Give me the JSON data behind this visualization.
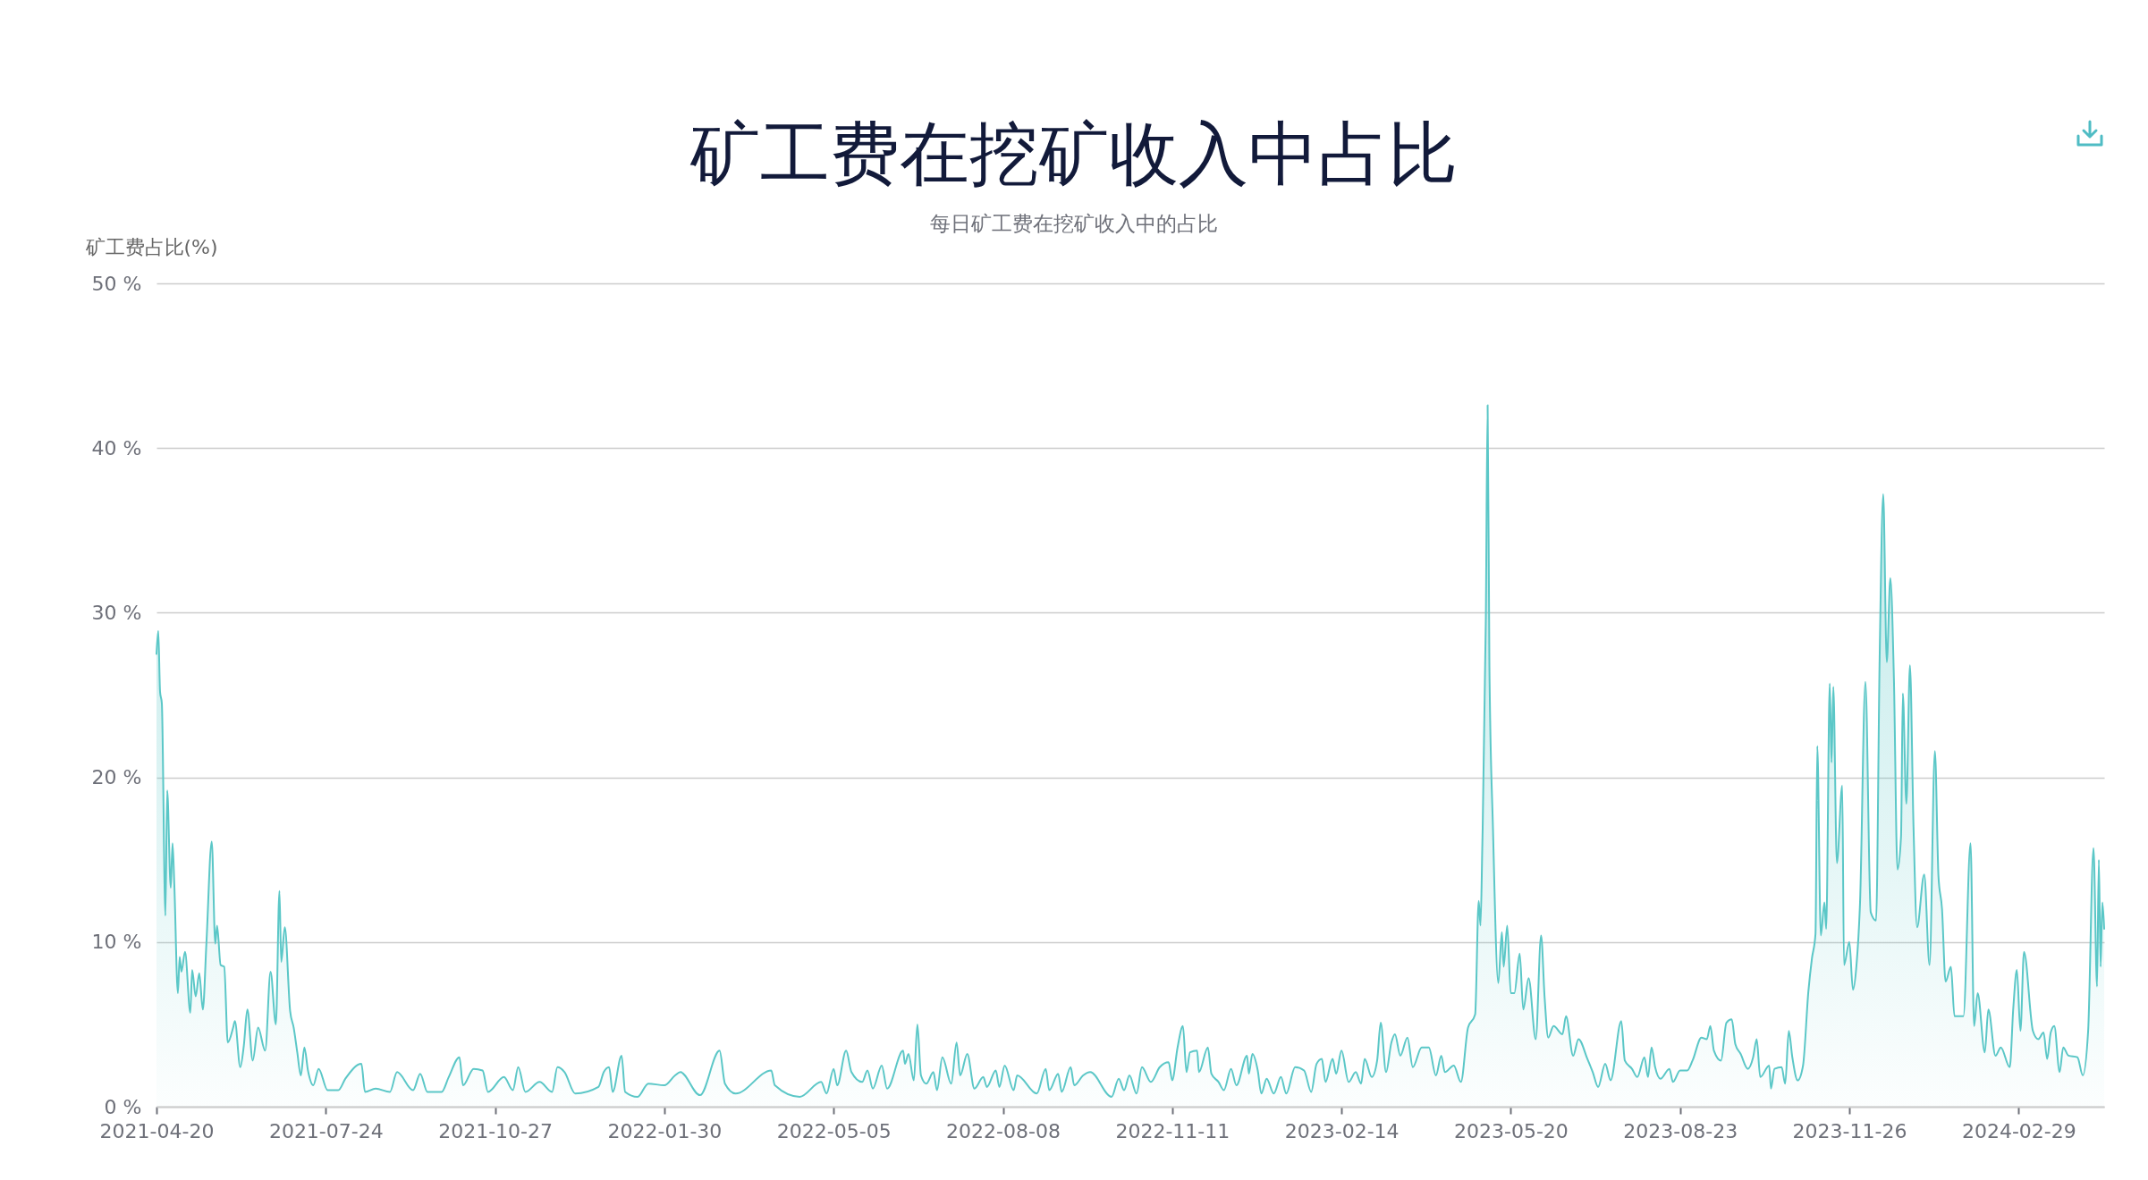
{
  "chart_data": {
    "type": "area",
    "title": "矿工费在挖矿收入中占比",
    "subtitle": "每日矿工费在挖矿收入中的占比",
    "ylabel": "矿工费占比(%)",
    "x": [
      "2021-04-20",
      "2021-04-21",
      "2021-04-22",
      "2021-04-23",
      "2021-04-25",
      "2021-04-26",
      "2021-04-28",
      "2021-04-29",
      "2021-04-30",
      "2021-05-02",
      "2021-05-03",
      "2021-05-04",
      "2021-05-06",
      "2021-05-09",
      "2021-05-10",
      "2021-05-12",
      "2021-05-14",
      "2021-05-16",
      "2021-05-18",
      "2021-05-21",
      "2021-05-23",
      "2021-05-24",
      "2021-05-26",
      "2021-05-28",
      "2021-05-30",
      "2021-06-02",
      "2021-06-03",
      "2021-06-06",
      "2021-06-08",
      "2021-06-10",
      "2021-06-13",
      "2021-06-16",
      "2021-06-20",
      "2021-06-23",
      "2021-06-26",
      "2021-06-28",
      "2021-06-29",
      "2021-07-01",
      "2021-07-04",
      "2021-07-06",
      "2021-07-08",
      "2021-07-10",
      "2021-07-12",
      "2021-07-14",
      "2021-07-17",
      "2021-07-20",
      "2021-07-25",
      "2021-07-31",
      "2021-08-04",
      "2021-08-13",
      "2021-08-15",
      "2021-08-21",
      "2021-08-29",
      "2021-09-02",
      "2021-09-11",
      "2021-09-15",
      "2021-09-19",
      "2021-09-27",
      "2021-10-01",
      "2021-10-07",
      "2021-10-09",
      "2021-10-15",
      "2021-10-20",
      "2021-10-23",
      "2021-11-01",
      "2021-11-06",
      "2021-11-09",
      "2021-11-13",
      "2021-11-21",
      "2021-11-28",
      "2021-12-01",
      "2021-12-05",
      "2021-12-11",
      "2021-12-24",
      "2021-12-27",
      "2021-12-30",
      "2022-01-01",
      "2022-01-06",
      "2022-01-08",
      "2022-01-15",
      "2022-01-21",
      "2022-01-30",
      "2022-02-05",
      "2022-02-08",
      "2022-02-19",
      "2022-03-02",
      "2022-03-05",
      "2022-03-11",
      "2022-03-31",
      "2022-04-02",
      "2022-04-16",
      "2022-04-28",
      "2022-05-01",
      "2022-05-05",
      "2022-05-07",
      "2022-05-12",
      "2022-05-15",
      "2022-05-21",
      "2022-05-24",
      "2022-05-27",
      "2022-06-01",
      "2022-06-04",
      "2022-06-13",
      "2022-06-14",
      "2022-06-16",
      "2022-06-19",
      "2022-06-21",
      "2022-06-23",
      "2022-06-26",
      "2022-06-30",
      "2022-07-02",
      "2022-07-05",
      "2022-07-10",
      "2022-07-13",
      "2022-07-15",
      "2022-07-19",
      "2022-07-23",
      "2022-07-28",
      "2022-07-30",
      "2022-08-04",
      "2022-08-06",
      "2022-08-09",
      "2022-08-14",
      "2022-08-16",
      "2022-08-27",
      "2022-09-01",
      "2022-09-03",
      "2022-09-08",
      "2022-09-10",
      "2022-09-15",
      "2022-09-17",
      "2022-09-22",
      "2022-09-26",
      "2022-10-08",
      "2022-10-12",
      "2022-10-15",
      "2022-10-18",
      "2022-10-22",
      "2022-10-25",
      "2022-10-30",
      "2022-11-04",
      "2022-11-09",
      "2022-11-11",
      "2022-11-14",
      "2022-11-17",
      "2022-11-19",
      "2022-11-21",
      "2022-11-25",
      "2022-11-26",
      "2022-12-01",
      "2022-12-03",
      "2022-12-07",
      "2022-12-10",
      "2022-12-14",
      "2022-12-17",
      "2022-12-23",
      "2022-12-24",
      "2022-12-26",
      "2022-12-29",
      "2022-12-31",
      "2023-01-03",
      "2023-01-07",
      "2023-01-11",
      "2023-01-14",
      "2023-01-19",
      "2023-01-24",
      "2023-01-28",
      "2023-01-31",
      "2023-02-03",
      "2023-02-05",
      "2023-02-09",
      "2023-02-11",
      "2023-02-14",
      "2023-02-18",
      "2023-02-22",
      "2023-02-25",
      "2023-02-27",
      "2023-03-03",
      "2023-03-06",
      "2023-03-08",
      "2023-03-11",
      "2023-03-14",
      "2023-03-16",
      "2023-03-19",
      "2023-03-23",
      "2023-03-26",
      "2023-03-31",
      "2023-04-04",
      "2023-04-08",
      "2023-04-11",
      "2023-04-13",
      "2023-04-18",
      "2023-04-22",
      "2023-04-26",
      "2023-04-30",
      "2023-05-02",
      "2023-05-03",
      "2023-05-04",
      "2023-05-06",
      "2023-05-07",
      "2023-05-08",
      "2023-05-10",
      "2023-05-13",
      "2023-05-15",
      "2023-05-16",
      "2023-05-18",
      "2023-05-20",
      "2023-05-22",
      "2023-05-25",
      "2023-05-27",
      "2023-05-30",
      "2023-06-03",
      "2023-06-06",
      "2023-06-08",
      "2023-06-10",
      "2023-06-13",
      "2023-06-18",
      "2023-06-20",
      "2023-06-24",
      "2023-06-27",
      "2023-07-02",
      "2023-07-05",
      "2023-07-08",
      "2023-07-12",
      "2023-07-15",
      "2023-07-21",
      "2023-07-23",
      "2023-07-27",
      "2023-07-30",
      "2023-08-03",
      "2023-08-05",
      "2023-08-07",
      "2023-08-09",
      "2023-08-12",
      "2023-08-17",
      "2023-08-19",
      "2023-08-23",
      "2023-08-27",
      "2023-08-30",
      "2023-09-04",
      "2023-09-07",
      "2023-09-09",
      "2023-09-11",
      "2023-09-15",
      "2023-09-18",
      "2023-09-21",
      "2023-09-23",
      "2023-09-26",
      "2023-09-30",
      "2023-10-03",
      "2023-10-05",
      "2023-10-07",
      "2023-10-12",
      "2023-10-13",
      "2023-10-15",
      "2023-10-19",
      "2023-10-21",
      "2023-10-23",
      "2023-10-25",
      "2023-10-28",
      "2023-10-31",
      "2023-11-03",
      "2023-11-05",
      "2023-11-07",
      "2023-11-08",
      "2023-11-10",
      "2023-11-12",
      "2023-11-13",
      "2023-11-15",
      "2023-11-16",
      "2023-11-17",
      "2023-11-19",
      "2023-11-22",
      "2023-11-23",
      "2023-11-26",
      "2023-11-28",
      "2023-11-30",
      "2023-12-02",
      "2023-12-05",
      "2023-12-08",
      "2023-12-11",
      "2023-12-13",
      "2023-12-15",
      "2023-12-17",
      "2023-12-19",
      "2023-12-21",
      "2023-12-23",
      "2023-12-25",
      "2023-12-26",
      "2023-12-28",
      "2023-12-30",
      "2024-01-01",
      "2024-01-03",
      "2024-01-07",
      "2024-01-10",
      "2024-01-13",
      "2024-01-15",
      "2024-01-17",
      "2024-01-19",
      "2024-01-22",
      "2024-01-24",
      "2024-01-29",
      "2024-02-02",
      "2024-02-04",
      "2024-02-06",
      "2024-02-10",
      "2024-02-12",
      "2024-02-16",
      "2024-02-19",
      "2024-02-24",
      "2024-02-26",
      "2024-02-28",
      "2024-03-01",
      "2024-03-03",
      "2024-03-08",
      "2024-03-11",
      "2024-03-14",
      "2024-03-16",
      "2024-03-18",
      "2024-03-20",
      "2024-03-23",
      "2024-03-25",
      "2024-03-28",
      "2024-04-02",
      "2024-04-05",
      "2024-04-08",
      "2024-04-11",
      "2024-04-13",
      "2024-04-14",
      "2024-04-15",
      "2024-04-16",
      "2024-04-17"
    ],
    "series": [
      {
        "color": "#5bc7c7",
        "values": [
          27.5,
          28.9,
          25.2,
          24.5,
          11.6,
          19.2,
          13.3,
          16.0,
          13.5,
          6.9,
          9.1,
          8.2,
          9.4,
          5.7,
          8.3,
          6.7,
          8.1,
          5.9,
          9.9,
          16.1,
          9.9,
          11.0,
          8.6,
          8.5,
          3.9,
          4.8,
          5.2,
          2.4,
          3.7,
          5.9,
          2.8,
          4.8,
          3.4,
          8.2,
          5.0,
          13.1,
          8.8,
          10.9,
          5.8,
          4.8,
          3.3,
          1.9,
          3.6,
          2.2,
          1.3,
          2.3,
          1.0,
          1.0,
          1.7,
          2.6,
          0.9,
          1.1,
          0.9,
          2.1,
          1.0,
          2.0,
          0.9,
          0.9,
          1.8,
          3.0,
          1.3,
          2.3,
          2.2,
          0.9,
          1.8,
          1.0,
          2.4,
          0.9,
          1.5,
          0.9,
          2.4,
          2.1,
          0.8,
          1.2,
          2.1,
          2.4,
          0.9,
          3.1,
          0.9,
          0.6,
          1.4,
          1.3,
          1.9,
          2.1,
          0.7,
          3.4,
          1.4,
          0.8,
          2.2,
          1.3,
          0.6,
          1.5,
          0.8,
          2.3,
          1.3,
          3.4,
          2.1,
          1.5,
          2.2,
          1.1,
          2.5,
          1.1,
          3.4,
          2.6,
          3.2,
          1.6,
          5.0,
          1.9,
          1.4,
          2.1,
          1.0,
          3.0,
          1.4,
          3.9,
          1.9,
          3.2,
          1.1,
          1.8,
          1.2,
          2.2,
          1.2,
          2.5,
          1.0,
          1.9,
          0.8,
          2.3,
          1.0,
          2.0,
          0.9,
          2.4,
          1.3,
          1.9,
          2.1,
          0.6,
          1.7,
          1.0,
          1.9,
          0.8,
          2.4,
          1.5,
          2.4,
          2.7,
          1.6,
          3.6,
          4.9,
          2.1,
          3.3,
          3.4,
          2.1,
          3.6,
          2.0,
          1.5,
          1.0,
          2.3,
          1.3,
          3.1,
          2.0,
          3.2,
          2.2,
          0.8,
          1.7,
          0.8,
          1.8,
          0.8,
          2.4,
          2.2,
          0.9,
          2.6,
          2.9,
          1.5,
          2.9,
          2.0,
          3.4,
          1.5,
          2.1,
          1.4,
          2.9,
          1.8,
          2.8,
          5.1,
          2.1,
          3.9,
          4.4,
          3.1,
          4.2,
          2.4,
          3.6,
          3.6,
          1.9,
          3.1,
          2.1,
          2.5,
          1.5,
          4.8,
          5.6,
          12.5,
          11.0,
          15.7,
          29.7,
          42.6,
          26.8,
          16.9,
          7.5,
          10.6,
          8.5,
          11.0,
          6.9,
          6.9,
          9.3,
          5.9,
          7.8,
          4.1,
          10.4,
          6.6,
          4.2,
          4.9,
          4.4,
          5.5,
          3.1,
          4.1,
          2.9,
          2.1,
          1.2,
          2.6,
          1.6,
          5.2,
          2.8,
          2.3,
          1.8,
          3.0,
          1.8,
          3.6,
          2.4,
          1.7,
          2.3,
          1.5,
          2.2,
          2.2,
          2.8,
          4.2,
          4.1,
          4.9,
          3.4,
          2.8,
          5.1,
          5.3,
          3.8,
          3.2,
          2.3,
          3.0,
          4.1,
          1.8,
          2.5,
          1.1,
          2.3,
          2.4,
          1.4,
          4.6,
          3.0,
          1.6,
          2.5,
          7.0,
          9.0,
          10.5,
          21.9,
          10.4,
          12.4,
          10.8,
          25.7,
          20.9,
          25.5,
          14.8,
          19.5,
          8.6,
          10.0,
          7.1,
          8.6,
          12.4,
          25.8,
          11.8,
          11.3,
          27.3,
          37.2,
          27.0,
          32.1,
          26.0,
          14.4,
          16.4,
          25.1,
          18.4,
          26.8,
          17.0,
          10.9,
          14.1,
          8.6,
          21.6,
          14.0,
          12.0,
          7.6,
          8.5,
          5.5,
          5.5,
          16.0,
          4.9,
          6.9,
          3.3,
          5.9,
          3.1,
          3.6,
          2.4,
          6.0,
          8.3,
          4.6,
          9.4,
          4.6,
          4.1,
          4.5,
          2.9,
          4.5,
          4.9,
          2.1,
          3.6,
          3.1,
          3.0,
          1.9,
          4.6,
          15.7,
          7.3,
          15.0,
          8.5,
          12.4,
          10.8
        ]
      }
    ],
    "xlim": [
      "2021-04-20",
      "2024-04-17"
    ],
    "xticks": [
      "2021-04-20",
      "2021-07-24",
      "2021-10-27",
      "2022-01-30",
      "2022-05-05",
      "2022-08-08",
      "2022-11-11",
      "2023-02-14",
      "2023-05-20",
      "2023-08-23",
      "2023-11-26",
      "2024-02-29"
    ],
    "ylim": [
      0,
      50
    ],
    "yticks": [
      {
        "value": 0,
        "label": "0 %"
      },
      {
        "value": 10,
        "label": "10 %"
      },
      {
        "value": 20,
        "label": "20 %"
      },
      {
        "value": 30,
        "label": "30 %"
      },
      {
        "value": 40,
        "label": "40 %"
      },
      {
        "value": 50,
        "label": "50 %"
      }
    ],
    "grid": "y"
  }
}
